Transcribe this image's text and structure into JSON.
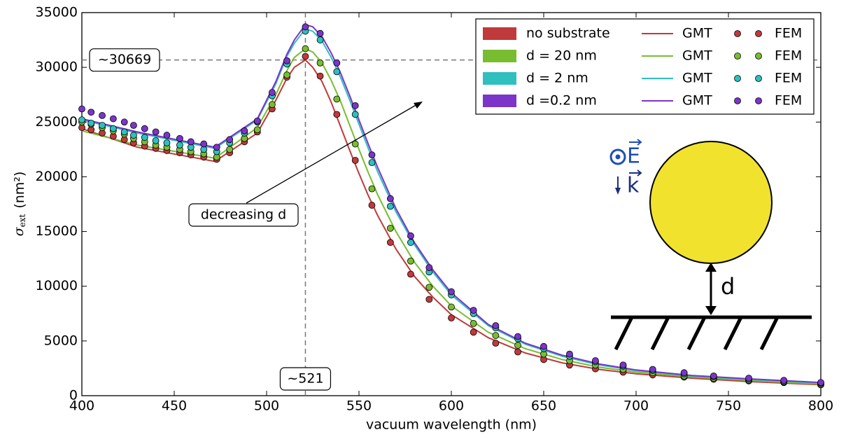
{
  "chart_data": {
    "type": "line",
    "xlabel": "vacuum wavelength (nm)",
    "ylabel": {
      "symbol": "σ",
      "subscript": "ext",
      "unit": "(nm²)"
    },
    "xlim": [
      400,
      800
    ],
    "ylim": [
      0,
      35000
    ],
    "xticks": [
      400,
      450,
      500,
      550,
      600,
      650,
      700,
      750,
      800
    ],
    "yticks": [
      0,
      5000,
      10000,
      15000,
      20000,
      25000,
      30000,
      35000
    ],
    "legend": "upper right",
    "gmt_x": [
      400,
      430,
      472,
      495,
      505,
      511,
      515,
      521,
      525,
      530,
      535,
      540,
      545,
      550,
      555,
      560,
      570,
      580,
      590,
      600,
      620,
      640,
      660,
      680,
      700,
      730,
      760,
      800
    ],
    "fem_x": [
      400,
      405,
      411,
      417,
      423,
      428,
      434,
      440,
      446,
      453,
      459,
      466,
      473,
      480,
      488,
      495,
      503,
      511,
      521,
      529,
      538,
      548,
      557,
      567,
      578,
      588,
      600,
      612,
      624,
      636,
      650,
      664,
      678,
      693,
      709,
      726,
      742,
      761,
      780,
      800
    ],
    "series": [
      {
        "name": "no substrate",
        "color": "#c0393b",
        "gmt_label": "GMT",
        "fem_label": "FEM",
        "gmt_values": [
          24400,
          22700,
          21400,
          24000,
          27000,
          29000,
          30000,
          30669,
          30000,
          28700,
          26800,
          24600,
          22400,
          20300,
          18300,
          16500,
          13400,
          10900,
          9000,
          7400,
          5300,
          3900,
          3000,
          2400,
          2000,
          1600,
          1300,
          1000
        ],
        "fem_values": [
          24500,
          24300,
          24000,
          23700,
          23400,
          23100,
          22800,
          22600,
          22400,
          22200,
          22000,
          21800,
          21600,
          22200,
          23200,
          24100,
          26200,
          29100,
          31000,
          29200,
          25700,
          21500,
          17400,
          14000,
          11100,
          8800,
          7100,
          5800,
          4800,
          4000,
          3300,
          2800,
          2450,
          2150,
          1900,
          1700,
          1500,
          1350,
          1200,
          1000
        ]
      },
      {
        "name": "d = 20 nm",
        "color": "#78bd30",
        "gmt_label": "GMT",
        "fem_label": "FEM",
        "gmt_values": [
          24200,
          22900,
          21700,
          24500,
          27500,
          29700,
          30900,
          31700,
          31400,
          30400,
          28800,
          26900,
          24700,
          22500,
          20400,
          18400,
          15000,
          12200,
          10000,
          8200,
          5800,
          4300,
          3300,
          2600,
          2150,
          1700,
          1400,
          1050
        ],
        "fem_values": [
          25000,
          24800,
          24500,
          24200,
          23900,
          23500,
          23200,
          22900,
          22700,
          22500,
          22300,
          22100,
          21800,
          22500,
          23500,
          24300,
          26600,
          29300,
          31700,
          30400,
          27100,
          23000,
          18900,
          15300,
          12300,
          9900,
          8100,
          6600,
          5500,
          4600,
          3800,
          3200,
          2800,
          2400,
          2100,
          1800,
          1600,
          1400,
          1250,
          1050
        ]
      },
      {
        "name": "d = 2 nm",
        "color": "#2fbfbf",
        "gmt_label": "GMT",
        "fem_label": "FEM",
        "gmt_values": [
          25200,
          24000,
          22600,
          25200,
          28500,
          31000,
          32200,
          33500,
          33300,
          32400,
          30900,
          29100,
          27000,
          24800,
          22600,
          20500,
          16800,
          13800,
          11300,
          9200,
          6400,
          4700,
          3600,
          2800,
          2300,
          1800,
          1500,
          1150
        ],
        "fem_values": [
          25200,
          24900,
          24700,
          24400,
          24100,
          23800,
          23600,
          23300,
          23100,
          22900,
          22700,
          22500,
          22300,
          23100,
          24000,
          25000,
          27400,
          30300,
          33300,
          32500,
          29600,
          25700,
          21300,
          17300,
          14000,
          11300,
          9200,
          7500,
          6200,
          5200,
          4300,
          3600,
          3100,
          2700,
          2300,
          2000,
          1750,
          1500,
          1300,
          1150
        ]
      },
      {
        "name": "d =0.2 nm",
        "color": "#7b35c8",
        "gmt_label": "GMT",
        "fem_label": "FEM",
        "gmt_values": [
          25300,
          24100,
          22700,
          25300,
          28700,
          31200,
          32500,
          33900,
          33700,
          32800,
          31300,
          29500,
          27400,
          25200,
          23000,
          20900,
          17100,
          14000,
          11500,
          9400,
          6500,
          4800,
          3700,
          2900,
          2350,
          1850,
          1550,
          1200
        ],
        "fem_values": [
          26200,
          25900,
          25600,
          25300,
          25000,
          24700,
          24400,
          24100,
          23800,
          23500,
          23200,
          23000,
          22700,
          23400,
          24200,
          25100,
          27700,
          30600,
          33700,
          33100,
          30400,
          26500,
          22000,
          18000,
          14600,
          11700,
          9500,
          7800,
          6400,
          5400,
          4500,
          3800,
          3200,
          2800,
          2400,
          2100,
          1800,
          1600,
          1400,
          1200
        ]
      }
    ],
    "hline": {
      "value": 30669,
      "label": "~30669"
    },
    "vline": {
      "value": 521,
      "label": "~521"
    },
    "arrow_label": "decreasing d",
    "inset": {
      "field_label": "E",
      "wave_label": "k",
      "gap_label": "d"
    }
  }
}
